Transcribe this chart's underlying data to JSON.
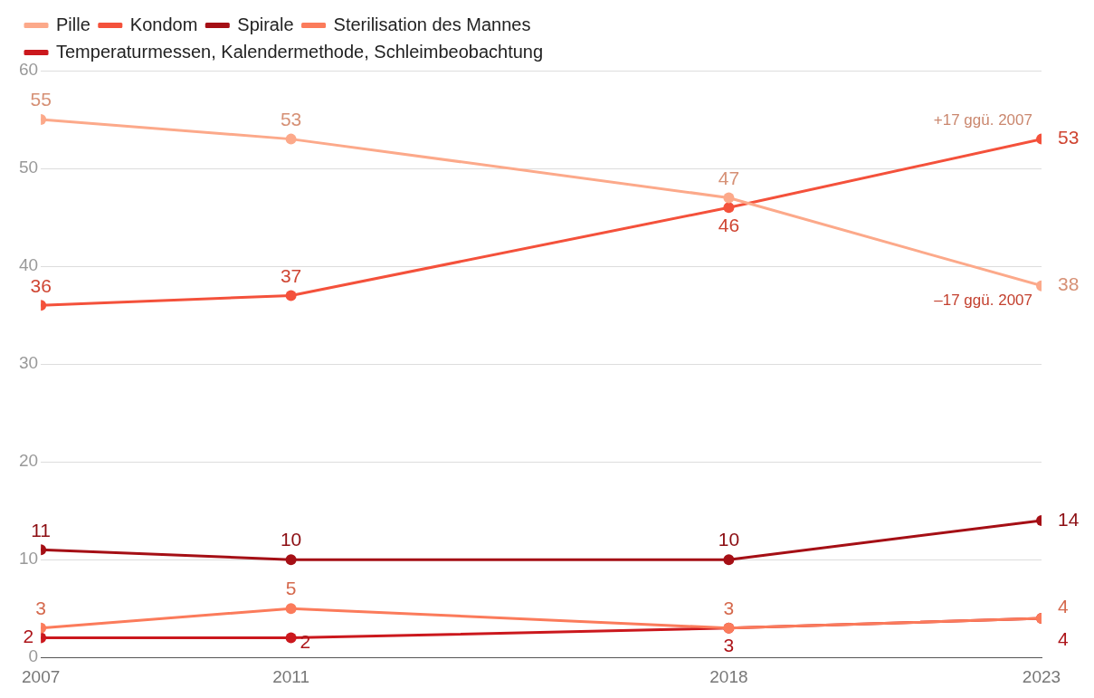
{
  "chart_data": {
    "type": "line",
    "x": [
      2007,
      2011,
      2018,
      2023
    ],
    "xlim": [
      2007,
      2023
    ],
    "xticks": [
      2007,
      2011,
      2018,
      2023
    ],
    "ylim": [
      0,
      60
    ],
    "yticks": [
      0,
      10,
      20,
      30,
      40,
      50,
      60
    ],
    "grid": "y",
    "legend": "top",
    "marker": "circle",
    "line_style": "solid",
    "data_labels": true,
    "series": [
      {
        "name": "Pille",
        "color": "#fca98a",
        "values": [
          55,
          53,
          47,
          38
        ]
      },
      {
        "name": "Kondom",
        "color": "#f4513b",
        "values": [
          36,
          37,
          46,
          53
        ]
      },
      {
        "name": "Spirale",
        "color": "#a50f15",
        "values": [
          11,
          10,
          10,
          14
        ]
      },
      {
        "name": "Sterilisation des Mannes",
        "color": "#fb7b5b",
        "values": [
          3,
          5,
          3,
          4
        ]
      },
      {
        "name": "Temperaturmessen, Kalendermethode, Schleimbeobachtung",
        "color": "#cb181d",
        "values": [
          2,
          2,
          3,
          4
        ]
      }
    ],
    "annotations": [
      {
        "text": "+17 ggü. 2007",
        "x": 2023,
        "y": 53
      },
      {
        "text": "–17 ggü. 2007",
        "x": 2023,
        "y": 38
      }
    ]
  }
}
